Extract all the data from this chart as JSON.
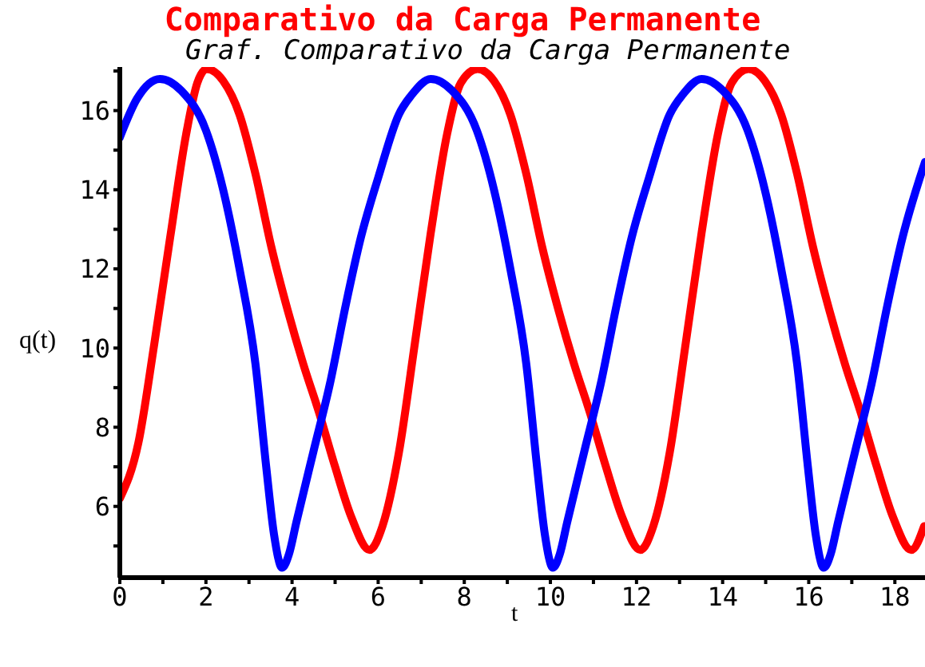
{
  "chart_data": {
    "type": "line",
    "title": "Comparativo da Carga Permanente",
    "subtitle": "Graf. Comparativo da Carga Permanente",
    "xlabel": "t",
    "ylabel": "q(t)",
    "xlim": [
      0,
      18.7
    ],
    "ylim": [
      4.2,
      17.1
    ],
    "xticks": [
      0,
      {
        "value": 1,
        "label": null
      },
      2,
      {
        "value": 3,
        "label": null
      },
      4,
      {
        "value": 5,
        "label": null
      },
      6,
      {
        "value": 7,
        "label": null
      },
      8,
      {
        "value": 9,
        "label": null
      },
      10,
      {
        "value": 11,
        "label": null
      },
      12,
      {
        "value": 13,
        "label": null
      },
      14,
      {
        "value": 15,
        "label": null
      },
      16,
      {
        "value": 17,
        "label": null
      },
      18
    ],
    "yticks": [
      {
        "value": 5,
        "label": null
      },
      6,
      {
        "value": 7,
        "label": null
      },
      8,
      {
        "value": 9,
        "label": null
      },
      10,
      {
        "value": 11,
        "label": null
      },
      12,
      {
        "value": 13,
        "label": null
      },
      14,
      {
        "value": 15,
        "label": null
      },
      16,
      {
        "value": 17,
        "label": null
      }
    ],
    "grid": false,
    "legend": false,
    "marker": "none",
    "line_style": "solid",
    "series": [
      {
        "color": "#ff0000",
        "x": [
          0,
          0.43,
          0.8,
          1.17,
          1.54,
          1.8,
          2.02,
          2.4,
          2.78,
          3.15,
          3.52,
          3.9,
          4.26,
          4.63,
          5.0,
          5.37,
          5.8,
          6.1,
          6.48,
          6.85,
          7.22,
          7.6,
          7.92,
          8.31,
          8.69,
          9.07,
          9.44,
          9.81,
          10.19,
          10.55,
          10.92,
          11.29,
          11.66,
          12.09,
          12.39,
          12.77,
          13.14,
          13.51,
          13.89,
          14.21,
          14.6,
          14.98,
          15.36,
          15.73,
          16.1,
          16.48,
          16.84,
          17.21,
          17.58,
          17.95,
          18.38,
          18.68
        ],
        "values": [
          6.2,
          7.6,
          10.1,
          12.8,
          15.4,
          16.7,
          17.05,
          16.75,
          15.9,
          14.4,
          12.55,
          10.95,
          9.6,
          8.36,
          7.0,
          5.75,
          4.9,
          5.5,
          7.35,
          10.1,
          12.9,
          15.4,
          16.7,
          17.05,
          16.75,
          15.9,
          14.4,
          12.55,
          10.95,
          9.6,
          8.36,
          7.0,
          5.75,
          4.9,
          5.5,
          7.35,
          10.1,
          12.9,
          15.4,
          16.7,
          17.05,
          16.75,
          15.9,
          14.4,
          12.55,
          10.95,
          9.6,
          8.36,
          7.0,
          5.75,
          4.9,
          5.5
        ]
      },
      {
        "color": "#0000ff",
        "x": [
          0,
          0.4,
          0.93,
          1.43,
          2.0,
          2.4,
          2.78,
          3.15,
          3.4,
          3.58,
          3.77,
          3.93,
          4.1,
          4.5,
          4.88,
          5.25,
          5.6,
          6.0,
          6.48,
          6.78,
          7.22,
          7.72,
          8.29,
          8.69,
          9.07,
          9.44,
          9.69,
          9.87,
          10.06,
          10.22,
          10.39,
          10.79,
          11.17,
          11.54,
          11.89,
          12.29,
          12.77,
          13.07,
          13.51,
          14.01,
          14.58,
          14.98,
          15.36,
          15.73,
          15.98,
          16.16,
          16.35,
          16.51,
          16.68,
          17.08,
          17.46,
          17.83,
          18.18,
          18.58,
          18.7
        ],
        "values": [
          15.32,
          16.3,
          16.8,
          16.5,
          15.5,
          14.0,
          12.0,
          9.6,
          7.0,
          5.3,
          4.45,
          4.8,
          5.6,
          7.4,
          9.1,
          11.1,
          12.8,
          14.3,
          15.9,
          16.4,
          16.8,
          16.5,
          15.5,
          14.0,
          12.0,
          9.6,
          7.0,
          5.3,
          4.45,
          4.8,
          5.6,
          7.4,
          9.1,
          11.1,
          12.8,
          14.3,
          15.9,
          16.4,
          16.8,
          16.5,
          15.5,
          14.0,
          12.0,
          9.6,
          7.0,
          5.3,
          4.45,
          4.8,
          5.6,
          7.4,
          9.1,
          11.1,
          12.8,
          14.3,
          14.7
        ]
      }
    ]
  }
}
